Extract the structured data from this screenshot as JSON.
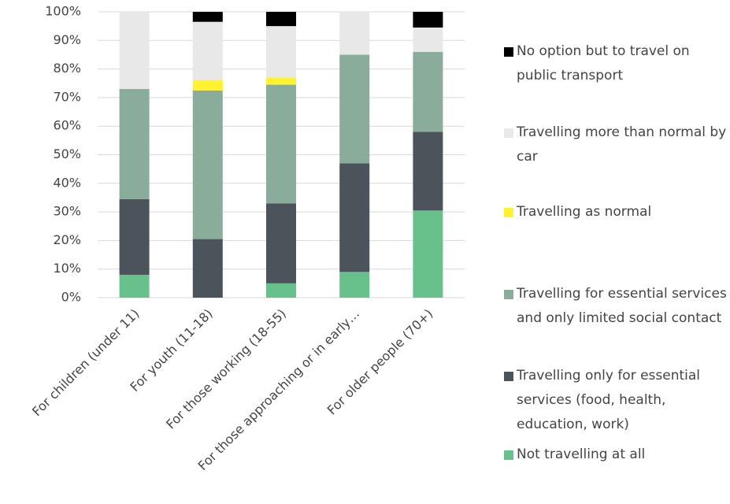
{
  "chart_data": {
    "type": "stacked_bar",
    "categories": [
      "For children (under 11)",
      "For youth (11-18)",
      "For those working (18-55)",
      "For those approaching or in early…",
      "For older people (70+)"
    ],
    "series": [
      {
        "name": "Not travelling at all",
        "color": "#66c18a",
        "values": [
          8,
          0,
          5,
          9,
          30.5
        ]
      },
      {
        "name": "Travelling only for essential services (food, health, education, work)",
        "color": "#4b535b",
        "values": [
          26.5,
          20.5,
          28,
          38,
          27.5
        ]
      },
      {
        "name": "Travelling for essential services and only limited social contact",
        "color": "#8aad9b",
        "values": [
          38.5,
          52,
          41.5,
          38,
          28
        ]
      },
      {
        "name": "Travelling as normal",
        "color": "#fff22e",
        "values": [
          0,
          3.5,
          2.5,
          0,
          0
        ]
      },
      {
        "name": "Travelling more than normal by car",
        "color": "#e8e8e8",
        "values": [
          27,
          20.5,
          18,
          15,
          8.5
        ]
      },
      {
        "name": "No option but to travel on public transport",
        "color": "#000000",
        "values": [
          0,
          3.5,
          5,
          0,
          5.5
        ]
      }
    ],
    "ylim": [
      0,
      100
    ],
    "yticks": [
      {
        "value": 0,
        "label": "0%"
      },
      {
        "value": 10,
        "label": "10%"
      },
      {
        "value": 20,
        "label": "20%"
      },
      {
        "value": 30,
        "label": "30%"
      },
      {
        "value": 40,
        "label": "40%"
      },
      {
        "value": 50,
        "label": "50%"
      },
      {
        "value": 60,
        "label": "60%"
      },
      {
        "value": 70,
        "label": "70%"
      },
      {
        "value": 80,
        "label": "80%"
      },
      {
        "value": 90,
        "label": "90%"
      },
      {
        "value": 100,
        "label": "100%"
      }
    ],
    "grid": true,
    "legend": "right"
  }
}
